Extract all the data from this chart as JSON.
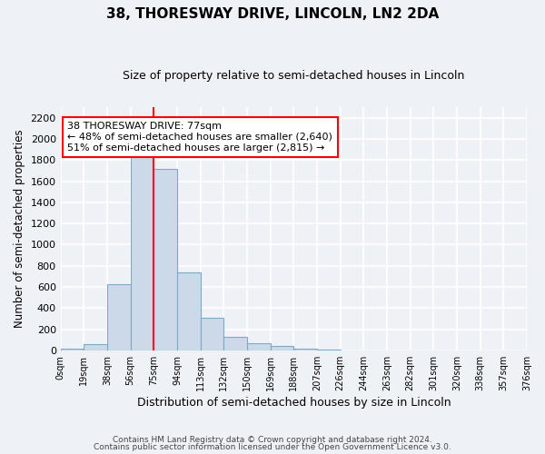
{
  "title": "38, THORESWAY DRIVE, LINCOLN, LN2 2DA",
  "subtitle": "Size of property relative to semi-detached houses in Lincoln",
  "xlabel": "Distribution of semi-detached houses by size in Lincoln",
  "ylabel": "Number of semi-detached properties",
  "bin_labels": [
    "0sqm",
    "19sqm",
    "38sqm",
    "56sqm",
    "75sqm",
    "94sqm",
    "113sqm",
    "132sqm",
    "150sqm",
    "169sqm",
    "188sqm",
    "207sqm",
    "226sqm",
    "244sqm",
    "263sqm",
    "282sqm",
    "301sqm",
    "320sqm",
    "338sqm",
    "357sqm",
    "376sqm"
  ],
  "bar_values": [
    15,
    55,
    625,
    1830,
    1720,
    740,
    305,
    130,
    65,
    40,
    15,
    5,
    0,
    0,
    0,
    0,
    0,
    0,
    0,
    0
  ],
  "bar_color": "#ccd9e8",
  "bar_edgecolor": "#7aaac8",
  "property_line_x": 4.0,
  "property_line_color": "red",
  "annotation_title": "38 THORESWAY DRIVE: 77sqm",
  "annotation_line1": "← 48% of semi-detached houses are smaller (2,640)",
  "annotation_line2": "51% of semi-detached houses are larger (2,815) →",
  "annotation_box_color": "white",
  "annotation_box_edgecolor": "red",
  "ylim": [
    0,
    2300
  ],
  "yticks": [
    0,
    200,
    400,
    600,
    800,
    1000,
    1200,
    1400,
    1600,
    1800,
    2000,
    2200
  ],
  "footer_line1": "Contains HM Land Registry data © Crown copyright and database right 2024.",
  "footer_line2": "Contains public sector information licensed under the Open Government Licence v3.0.",
  "bg_color": "#eef2f7",
  "grid_color": "white"
}
